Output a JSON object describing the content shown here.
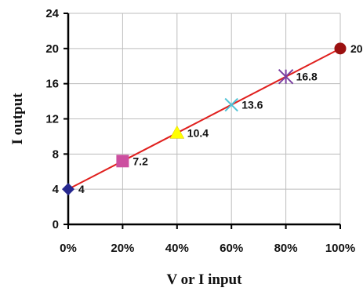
{
  "chart_data": {
    "type": "scatter",
    "title": "",
    "xlabel": "V or I input",
    "ylabel": "I output",
    "x": [
      0,
      20,
      40,
      60,
      80,
      100
    ],
    "x_tick_labels": [
      "0%",
      "20%",
      "40%",
      "60%",
      "80%",
      "100%"
    ],
    "y_ticks": [
      0,
      4,
      8,
      12,
      16,
      20,
      24
    ],
    "y_tick_labels": [
      "0",
      "4",
      "8",
      "12",
      "16",
      "20",
      "24"
    ],
    "xlim": [
      0,
      100
    ],
    "ylim": [
      0,
      24
    ],
    "grid": true,
    "series": [
      {
        "values": [
          4,
          7.2,
          10.4,
          13.6,
          16.8,
          20
        ],
        "data_labels": [
          "4",
          "7.2",
          "10.4",
          "13.6",
          "16.8",
          "20"
        ],
        "line_color": "#e0201e",
        "markers": [
          {
            "shape": "diamond",
            "color": "#27288f"
          },
          {
            "shape": "square",
            "color": "#cc4fa0"
          },
          {
            "shape": "triangle",
            "color": "#ffff00"
          },
          {
            "shape": "x",
            "color": "#4fc3d6"
          },
          {
            "shape": "asterisk",
            "color": "#7a3fa0"
          },
          {
            "shape": "circle",
            "color": "#9b1010"
          }
        ]
      }
    ]
  }
}
